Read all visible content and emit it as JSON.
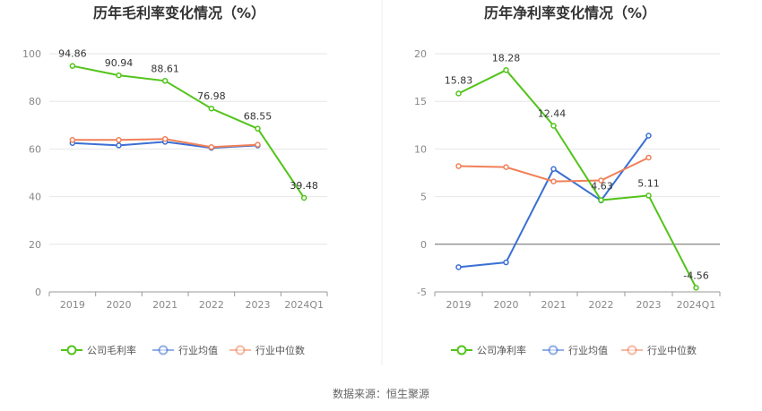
{
  "chart_data": [
    {
      "type": "line",
      "title": "历年毛利率变化情况（%）",
      "categories": [
        "2019",
        "2020",
        "2021",
        "2022",
        "2023",
        "2024Q1"
      ],
      "ylim": [
        0,
        100
      ],
      "yticks": [
        "0",
        "20",
        "40",
        "60",
        "80",
        "100"
      ],
      "grid": true,
      "legend_position": "bottom",
      "series": [
        {
          "name": "公司毛利率",
          "color": "#52c41a",
          "values": [
            94.86,
            90.94,
            88.61,
            76.98,
            68.55,
            39.48
          ],
          "labels": [
            "94.86",
            "90.94",
            "88.61",
            "76.98",
            "68.55",
            "39.48"
          ]
        },
        {
          "name": "行业均值",
          "color": "#3b6fd4",
          "values": [
            62.5,
            61.5,
            63.0,
            60.5,
            61.5,
            null
          ]
        },
        {
          "name": "行业中位数",
          "color": "#f08058",
          "values": [
            63.8,
            63.8,
            64.2,
            60.8,
            61.8,
            null
          ]
        }
      ]
    },
    {
      "type": "line",
      "title": "历年净利率变化情况（%）",
      "categories": [
        "2019",
        "2020",
        "2021",
        "2022",
        "2023",
        "2024Q1"
      ],
      "ylim": [
        -5,
        20
      ],
      "yticks": [
        "-5",
        "0",
        "5",
        "10",
        "15",
        "20"
      ],
      "grid": true,
      "legend_position": "bottom",
      "series": [
        {
          "name": "公司净利率",
          "color": "#52c41a",
          "values": [
            15.83,
            18.28,
            12.44,
            4.63,
            5.11,
            -4.56
          ],
          "labels": [
            "15.83",
            "18.28",
            "12.44",
            "4.63",
            "5.11",
            "-4.56"
          ]
        },
        {
          "name": "行业均值",
          "color": "#3b6fd4",
          "values": [
            -2.4,
            -1.9,
            7.9,
            4.6,
            11.4,
            null
          ]
        },
        {
          "name": "行业中位数",
          "color": "#f08058",
          "values": [
            8.2,
            8.1,
            6.6,
            6.7,
            9.1,
            null
          ]
        }
      ]
    }
  ],
  "footer": {
    "source": "数据来源：恒生聚源"
  }
}
